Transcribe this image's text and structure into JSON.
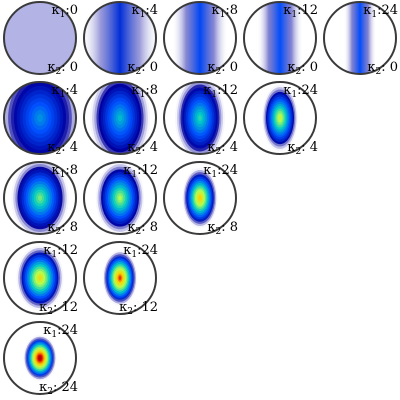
{
  "grid": {
    "description_rows": "rows ordered by kappa2 increasing, columns by kappa1 increasing",
    "panels": [
      {
        "k1": "0",
        "k2": "0"
      },
      {
        "k1": "4",
        "k2": "0"
      },
      {
        "k1": "8",
        "k2": "0"
      },
      {
        "k1": "12",
        "k2": "0"
      },
      {
        "k1": "24",
        "k2": "0"
      },
      {
        "k1": "4",
        "k2": "4"
      },
      {
        "k1": "8",
        "k2": "4"
      },
      {
        "k1": "12",
        "k2": "4"
      },
      {
        "k1": "24",
        "k2": "4"
      },
      {
        "k1": "8",
        "k2": "8"
      },
      {
        "k1": "12",
        "k2": "8"
      },
      {
        "k1": "24",
        "k2": "8"
      },
      {
        "k1": "12",
        "k2": "12"
      },
      {
        "k1": "24",
        "k2": "12"
      },
      {
        "k1": "24",
        "k2": "24"
      }
    ]
  },
  "labels": {
    "k1_symbol": "κ",
    "k1_sub": "1",
    "k1_sep": ":",
    "k2_symbol": "κ",
    "k2_sub": "2",
    "k2_sep": ": "
  },
  "colors": {
    "outline": "#3a3a3a",
    "uniform_fill": "#b3b3e6",
    "cmap": [
      "#ffffff",
      "#0000a0",
      "#0050ff",
      "#00c8c8",
      "#b4ff50",
      "#ffd000",
      "#e00000",
      "#800000"
    ]
  }
}
